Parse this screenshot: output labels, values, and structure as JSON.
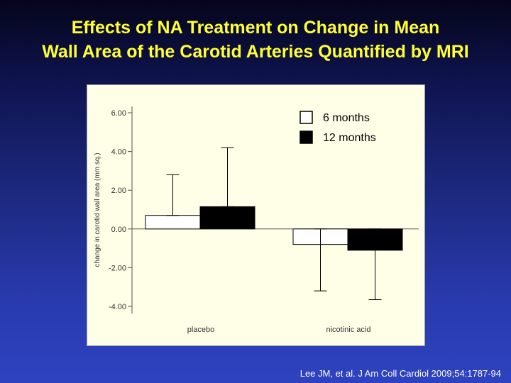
{
  "slide": {
    "title_line1": "Effects of NA Treatment on Change in Mean",
    "title_line2": "Wall Area of the Carotid Arteries Quantified by MRI",
    "citation": "Lee JM, et al. J Am Coll Cardiol 2009;54:1787-94"
  },
  "colors": {
    "title": "#ffff33",
    "panel_background": "#ffffe8",
    "axis": "#555555",
    "series_6_months": "#ffffff",
    "series_12_months": "#000000"
  },
  "chart_data": {
    "type": "bar",
    "title": "",
    "xlabel": "",
    "ylabel": "change in carotid wall area (mm sq.)",
    "categories": [
      "placebo",
      "nicotinic acid"
    ],
    "series": [
      {
        "name": "6 months",
        "values": [
          0.7,
          -0.8
        ],
        "error_upper": [
          2.8,
          0.0
        ],
        "error_lower": [
          0.7,
          -3.2
        ],
        "fill": "#ffffff"
      },
      {
        "name": "12 months",
        "values": [
          1.15,
          -1.1
        ],
        "error_upper": [
          4.2,
          0.0
        ],
        "error_lower": [
          1.15,
          -3.65
        ],
        "fill": "#000000"
      }
    ],
    "ylim": [
      -4.4,
      6.4
    ],
    "yticks": [
      6,
      4,
      2,
      0,
      -2,
      -4
    ],
    "ytick_labels": [
      "6.00",
      "4.00",
      "2.00",
      "0.00",
      "-2.00",
      "-4.00"
    ],
    "grid": false,
    "legend_position": "top-right"
  }
}
